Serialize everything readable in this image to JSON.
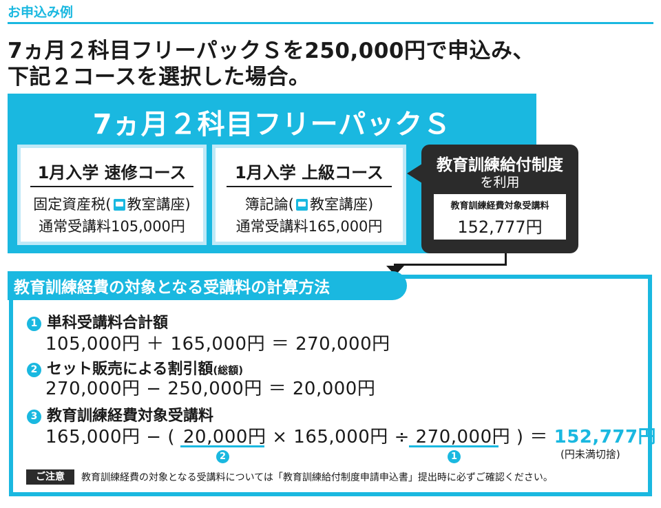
{
  "header": {
    "section_label": "お申込み例",
    "headline_1": "7ヵ月２科目フリーパックＳを250,000円で申込み、",
    "headline_2": "下記２コースを選択した場合。"
  },
  "pack": {
    "title": "7ヵ月２科目フリーパックＳ",
    "courses": [
      {
        "name": "1月入学 速修コース",
        "subject": "固定資産税(",
        "room": "教室講座)",
        "fee": "通常受講料105,000円"
      },
      {
        "name": "1月入学 上級コース",
        "subject": "簿記論(",
        "room": "教室講座)",
        "fee": "通常受講料165,000円"
      }
    ],
    "room_icon": "classroom-icon"
  },
  "subsidy": {
    "title": "教育訓練給付制度",
    "sub": "を利用",
    "inner_label": "教育訓練経費対象受講料",
    "inner_value": "152,777円"
  },
  "calc": {
    "title": "教育訓練経費の対象となる受講料の計算方法",
    "steps": [
      {
        "num": "1",
        "title": "単科受講料合計額",
        "title_small": "",
        "formula": "105,000円 ＋ 165,000円 ＝ 270,000円"
      },
      {
        "num": "2",
        "title": "セット販売による割引額",
        "title_small": "(総額)",
        "formula": "270,000円 − 250,000円 ＝ 20,000円"
      },
      {
        "num": "3",
        "title": "教育訓練経費対象受講料",
        "title_small": "",
        "formula_a": "165,000円 − (",
        "formula_b": "20,000円",
        "formula_c": "× 165,000円 ÷",
        "formula_d": "270,000円",
        "formula_e": ") ＝",
        "result": "152,777円"
      }
    ],
    "ref_1": "2",
    "ref_2": "1",
    "rounding_note": "(円未満切捨)",
    "note_badge": "ご注意",
    "note_text": "教育訓練経費の対象となる受講料については「教育訓練給付制度申請申込書」提出時に必ずご確認ください。"
  },
  "colors": {
    "accent": "#1ab8e0",
    "dark": "#2b2b2b"
  }
}
